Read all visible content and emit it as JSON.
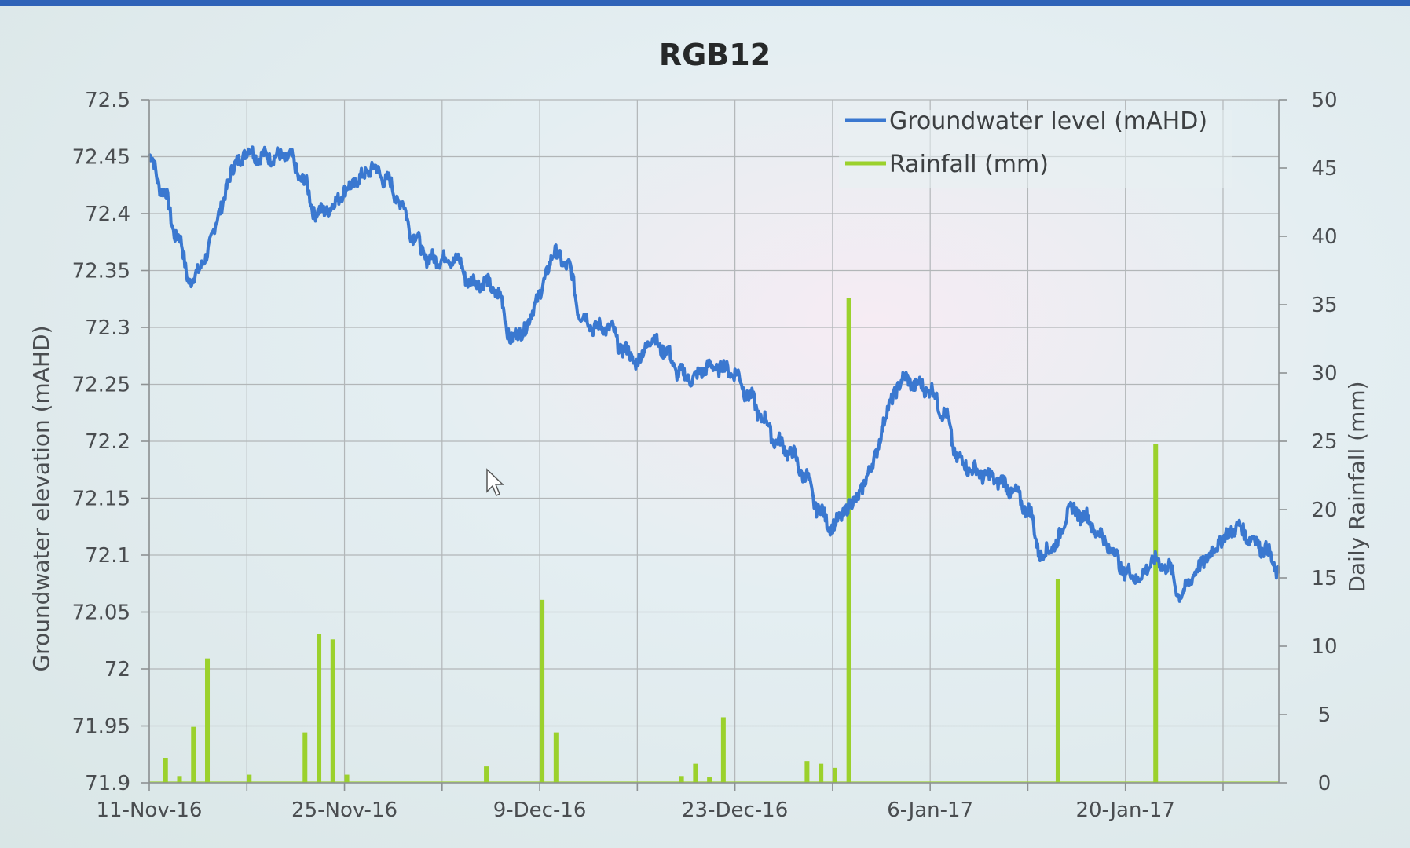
{
  "chart_data": {
    "type": "line+bar",
    "title": "RGB12",
    "xlabel": "",
    "ylabel_left": "Groundwater elevation (mAHD)",
    "ylabel_right": "Daily Rainfall (mm)",
    "x_range": [
      "2016-11-11",
      "2017-01-31"
    ],
    "y_left_range": [
      71.9,
      72.5
    ],
    "y_right_range": [
      0,
      50
    ],
    "grid": true,
    "legend_position": "top-right",
    "x_tick_labels": [
      {
        "date": "2016-11-11",
        "label": "11-Nov-16"
      },
      {
        "date": "2016-11-25",
        "label": "25-Nov-16"
      },
      {
        "date": "2016-12-09",
        "label": "9-Dec-16"
      },
      {
        "date": "2016-12-23",
        "label": "23-Dec-16"
      },
      {
        "date": "2017-01-06",
        "label": "6-Jan-17"
      },
      {
        "date": "2017-01-20",
        "label": "20-Jan-17"
      }
    ],
    "y_left_ticks": [
      "71.9",
      "71.95",
      "72",
      "72.05",
      "72.1",
      "72.15",
      "72.2",
      "72.25",
      "72.3",
      "72.35",
      "72.4",
      "72.45",
      "72.5"
    ],
    "y_right_ticks": [
      "0",
      "5",
      "10",
      "15",
      "20",
      "25",
      "30",
      "35",
      "40",
      "45",
      "50"
    ],
    "series": [
      {
        "name": "Groundwater level (mAHD)",
        "kind": "line",
        "color": "#3a78d0",
        "points": [
          [
            "2016-11-11",
            72.45
          ],
          [
            "2016-11-12",
            72.42
          ],
          [
            "2016-11-13",
            72.38
          ],
          [
            "2016-11-14",
            72.34
          ],
          [
            "2016-11-15",
            72.36
          ],
          [
            "2016-11-16",
            72.4
          ],
          [
            "2016-11-17",
            72.44
          ],
          [
            "2016-11-18",
            72.455
          ],
          [
            "2016-11-19",
            72.45
          ],
          [
            "2016-11-20",
            72.45
          ],
          [
            "2016-11-21",
            72.45
          ],
          [
            "2016-11-22",
            72.43
          ],
          [
            "2016-11-23",
            72.4
          ],
          [
            "2016-11-24",
            72.405
          ],
          [
            "2016-11-25",
            72.42
          ],
          [
            "2016-11-26",
            72.43
          ],
          [
            "2016-11-27",
            72.44
          ],
          [
            "2016-11-28",
            72.43
          ],
          [
            "2016-11-29",
            72.41
          ],
          [
            "2016-11-30",
            72.38
          ],
          [
            "2016-12-01",
            72.36
          ],
          [
            "2016-12-02",
            72.36
          ],
          [
            "2016-12-03",
            72.36
          ],
          [
            "2016-12-04",
            72.34
          ],
          [
            "2016-12-05",
            72.34
          ],
          [
            "2016-12-06",
            72.33
          ],
          [
            "2016-12-07",
            72.29
          ],
          [
            "2016-12-08",
            72.3
          ],
          [
            "2016-12-09",
            72.33
          ],
          [
            "2016-12-10",
            72.365
          ],
          [
            "2016-12-11",
            72.355
          ],
          [
            "2016-12-12",
            72.31
          ],
          [
            "2016-12-13",
            72.3
          ],
          [
            "2016-12-14",
            72.3
          ],
          [
            "2016-12-15",
            72.28
          ],
          [
            "2016-12-16",
            72.27
          ],
          [
            "2016-12-17",
            72.29
          ],
          [
            "2016-12-18",
            72.28
          ],
          [
            "2016-12-19",
            72.26
          ],
          [
            "2016-12-20",
            72.255
          ],
          [
            "2016-12-21",
            72.265
          ],
          [
            "2016-12-22",
            72.265
          ],
          [
            "2016-12-23",
            72.26
          ],
          [
            "2016-12-24",
            72.24
          ],
          [
            "2016-12-25",
            72.22
          ],
          [
            "2016-12-26",
            72.2
          ],
          [
            "2016-12-27",
            72.19
          ],
          [
            "2016-12-28",
            72.17
          ],
          [
            "2016-12-29",
            72.14
          ],
          [
            "2016-12-30",
            72.125
          ],
          [
            "2016-12-31",
            72.14
          ],
          [
            "2017-01-01",
            72.155
          ],
          [
            "2017-01-02",
            72.185
          ],
          [
            "2017-01-03",
            72.23
          ],
          [
            "2017-01-04",
            72.255
          ],
          [
            "2017-01-05",
            72.25
          ],
          [
            "2017-01-06",
            72.245
          ],
          [
            "2017-01-07",
            72.225
          ],
          [
            "2017-01-08",
            72.185
          ],
          [
            "2017-01-09",
            72.175
          ],
          [
            "2017-01-10",
            72.17
          ],
          [
            "2017-01-11",
            72.165
          ],
          [
            "2017-01-12",
            72.155
          ],
          [
            "2017-01-13",
            72.14
          ],
          [
            "2017-01-14",
            72.1
          ],
          [
            "2017-01-15",
            72.11
          ],
          [
            "2017-01-16",
            72.14
          ],
          [
            "2017-01-17",
            72.135
          ],
          [
            "2017-01-18",
            72.12
          ],
          [
            "2017-01-19",
            72.105
          ],
          [
            "2017-01-20",
            72.085
          ],
          [
            "2017-01-21",
            72.08
          ],
          [
            "2017-01-22",
            72.095
          ],
          [
            "2017-01-23",
            72.09
          ],
          [
            "2017-01-24",
            72.065
          ],
          [
            "2017-01-25",
            72.085
          ],
          [
            "2017-01-26",
            72.1
          ],
          [
            "2017-01-27",
            72.115
          ],
          [
            "2017-01-28",
            72.125
          ],
          [
            "2017-01-29",
            72.115
          ],
          [
            "2017-01-30",
            72.105
          ],
          [
            "2017-01-31",
            72.085
          ]
        ]
      },
      {
        "name": "Rainfall (mm)",
        "kind": "bar",
        "axis": "right",
        "color": "#9bd12c",
        "points": [
          [
            "2016-11-12",
            1.8
          ],
          [
            "2016-11-13",
            0.5
          ],
          [
            "2016-11-14",
            4.1
          ],
          [
            "2016-11-15",
            9.1
          ],
          [
            "2016-11-18",
            0.6
          ],
          [
            "2016-11-22",
            3.7
          ],
          [
            "2016-11-23",
            10.9
          ],
          [
            "2016-11-24",
            10.5
          ],
          [
            "2016-11-25",
            0.6
          ],
          [
            "2016-12-05",
            1.2
          ],
          [
            "2016-12-09",
            13.4
          ],
          [
            "2016-12-10",
            3.7
          ],
          [
            "2016-12-19",
            0.5
          ],
          [
            "2016-12-20",
            1.4
          ],
          [
            "2016-12-21",
            0.4
          ],
          [
            "2016-12-22",
            4.8
          ],
          [
            "2016-12-28",
            1.6
          ],
          [
            "2016-12-29",
            1.4
          ],
          [
            "2016-12-30",
            1.1
          ],
          [
            "2016-12-31",
            35.5
          ],
          [
            "2017-01-15",
            14.9
          ],
          [
            "2017-01-22",
            24.8
          ]
        ]
      }
    ]
  }
}
